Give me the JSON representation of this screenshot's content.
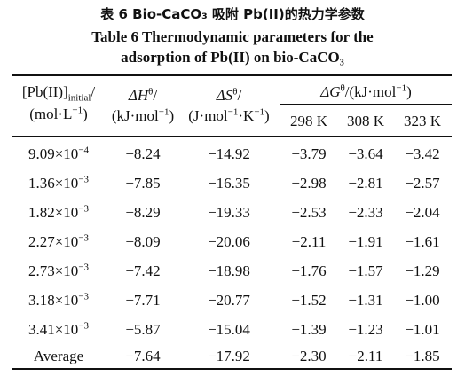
{
  "caption": {
    "zh": "表 6   Bio-CaCO₃ 吸附 Pb(II)的热力学参数",
    "en_line1": "Table 6    Thermodynamic parameters for the",
    "en_line2": "adsorption of Pb(II) on bio-CaCO₃"
  },
  "header": {
    "c0_line1_a": "[Pb(II)]",
    "c0_line1_sub": "initial",
    "c0_line1_b": "/",
    "c0_line2_a": "(mol·L",
    "c0_line2_sup": "−1",
    "c0_line2_b": ")",
    "dh_sym": "ΔH",
    "dh_sup": "θ",
    "dh_slash": "/",
    "dh_unit_a": "(kJ·mol",
    "dh_unit_sup": "−1",
    "dh_unit_b": ")",
    "ds_sym": "ΔS",
    "ds_sup": "θ",
    "ds_slash": "/",
    "ds_unit_a": "(J·mol",
    "ds_unit_sup1": "−1",
    "ds_unit_b": "·K",
    "ds_unit_sup2": "−1",
    "ds_unit_c": ")",
    "dg_sym": "ΔG",
    "dg_sup": "θ",
    "dg_unit_a": "/(kJ·mol",
    "dg_unit_sup": "−1",
    "dg_unit_b": ")",
    "temps": [
      "298 K",
      "308 K",
      "323 K"
    ]
  },
  "rows": [
    {
      "conc_mant": "9.09×10",
      "conc_exp": "−4",
      "dh": "−8.24",
      "ds": "−14.92",
      "g298": "−3.79",
      "g308": "−3.64",
      "g323": "−3.42"
    },
    {
      "conc_mant": "1.36×10",
      "conc_exp": "−3",
      "dh": "−7.85",
      "ds": "−16.35",
      "g298": "−2.98",
      "g308": "−2.81",
      "g323": "−2.57"
    },
    {
      "conc_mant": "1.82×10",
      "conc_exp": "−3",
      "dh": "−8.29",
      "ds": "−19.33",
      "g298": "−2.53",
      "g308": "−2.33",
      "g323": "−2.04"
    },
    {
      "conc_mant": "2.27×10",
      "conc_exp": "−3",
      "dh": "−8.09",
      "ds": "−20.06",
      "g298": "−2.11",
      "g308": "−1.91",
      "g323": "−1.61"
    },
    {
      "conc_mant": "2.73×10",
      "conc_exp": "−3",
      "dh": "−7.42",
      "ds": "−18.98",
      "g298": "−1.76",
      "g308": "−1.57",
      "g323": "−1.29"
    },
    {
      "conc_mant": "3.18×10",
      "conc_exp": "−3",
      "dh": "−7.71",
      "ds": "−20.77",
      "g298": "−1.52",
      "g308": "−1.31",
      "g323": "−1.00"
    },
    {
      "conc_mant": "3.41×10",
      "conc_exp": "−3",
      "dh": "−5.87",
      "ds": "−15.04",
      "g298": "−1.39",
      "g308": "−1.23",
      "g323": "−1.01"
    }
  ],
  "average": {
    "label": "Average",
    "dh": "−7.64",
    "ds": "−17.92",
    "g298": "−2.30",
    "g308": "−2.11",
    "g323": "−1.85"
  }
}
